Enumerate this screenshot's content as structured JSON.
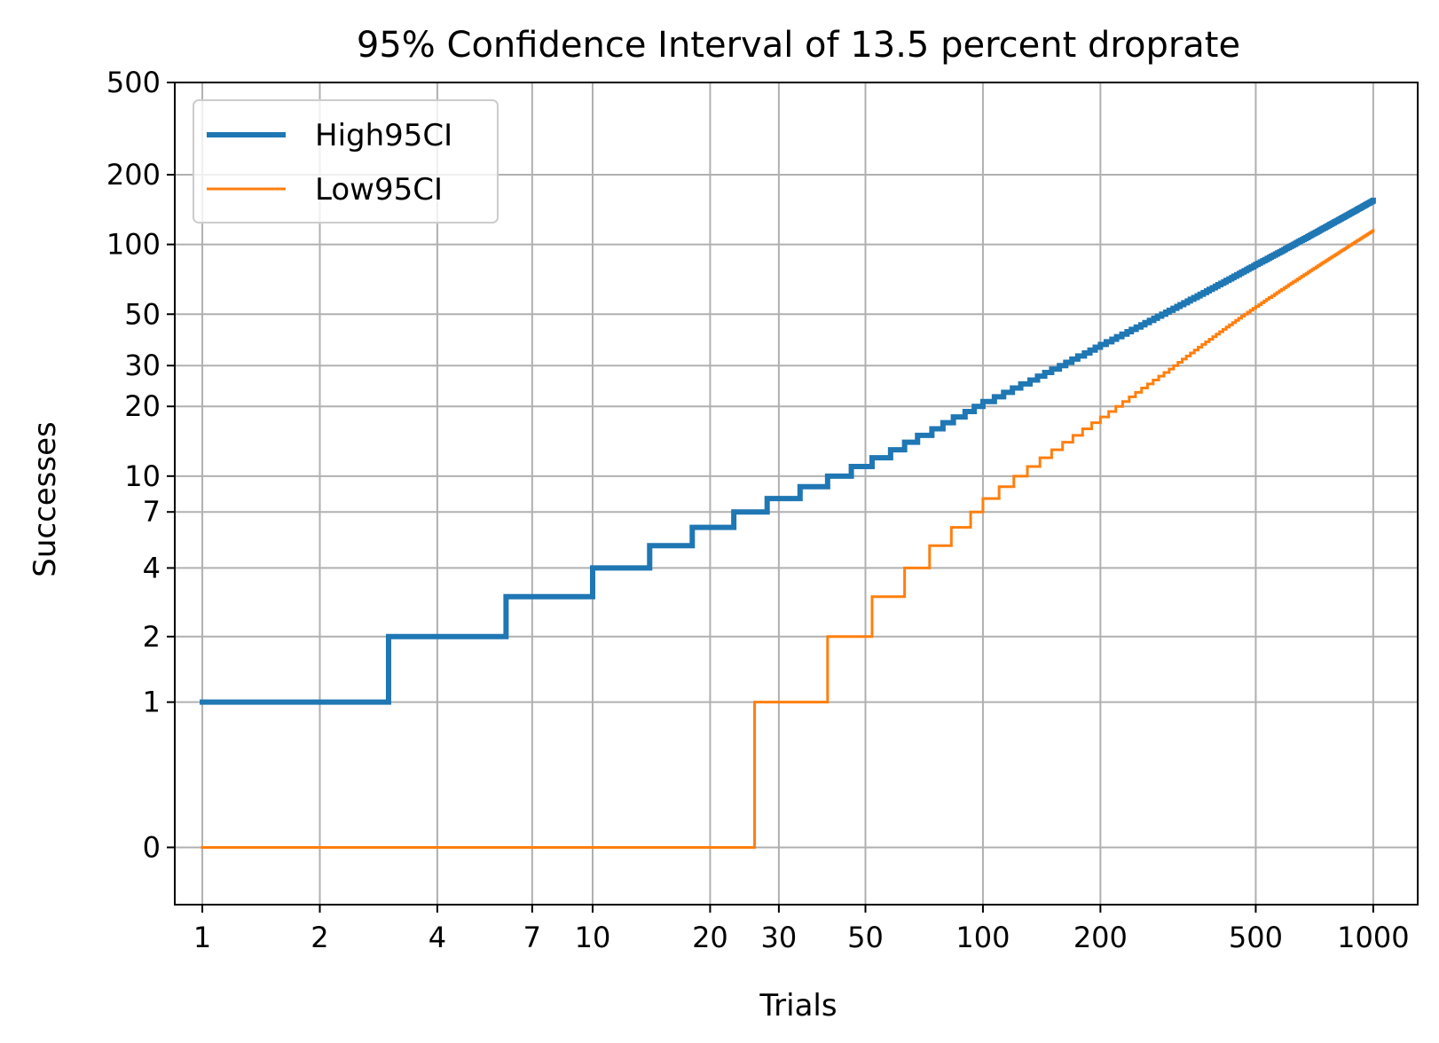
{
  "chart_data": {
    "type": "line",
    "step": true,
    "title": "95% Confidence Interval of 13.5 percent droprate",
    "xlabel": "Trials",
    "ylabel": "Successes",
    "x_scale": "log",
    "y_scale": "asinh",
    "xlim": [
      0.85,
      1300
    ],
    "ylim": [
      -0.3,
      500
    ],
    "grid": true,
    "legend_position": "top-left",
    "x_ticks": [
      1,
      2,
      4,
      7,
      10,
      20,
      30,
      50,
      100,
      200,
      500,
      1000
    ],
    "x_tick_labels": [
      "1",
      "2",
      "4",
      "7",
      "10",
      "20",
      "30",
      "50",
      "100",
      "200",
      "500",
      "1000"
    ],
    "y_ticks": [
      0,
      1,
      2,
      4,
      7,
      10,
      20,
      30,
      50,
      100,
      200,
      500
    ],
    "y_tick_labels": [
      "0",
      "1",
      "2",
      "4",
      "7",
      "10",
      "20",
      "30",
      "50",
      "100",
      "200",
      "500"
    ],
    "series": [
      {
        "name": "High95CI",
        "color": "#1f77b4",
        "x_range": [
          1,
          1000
        ],
        "points": [
          [
            1,
            1
          ],
          [
            3,
            2
          ],
          [
            6,
            3
          ],
          [
            10,
            4
          ],
          [
            14,
            5
          ],
          [
            18,
            6
          ],
          [
            23,
            7
          ],
          [
            28,
            8
          ],
          [
            34,
            9
          ],
          [
            40,
            10
          ],
          [
            46,
            11
          ],
          [
            52,
            12
          ],
          [
            100,
            21
          ],
          [
            200,
            37
          ],
          [
            300,
            52
          ],
          [
            500,
            82
          ],
          [
            1000,
            155
          ]
        ]
      },
      {
        "name": "Low95CI",
        "color": "#ff7f0e",
        "x_range": [
          1,
          1000
        ],
        "points": [
          [
            1,
            0
          ],
          [
            26,
            1
          ],
          [
            40,
            2
          ],
          [
            52,
            3
          ],
          [
            63,
            4
          ],
          [
            73,
            5
          ],
          [
            83,
            6
          ],
          [
            93,
            7
          ],
          [
            100,
            8
          ],
          [
            200,
            18
          ],
          [
            300,
            29
          ],
          [
            500,
            54
          ],
          [
            1000,
            115
          ]
        ]
      }
    ]
  }
}
